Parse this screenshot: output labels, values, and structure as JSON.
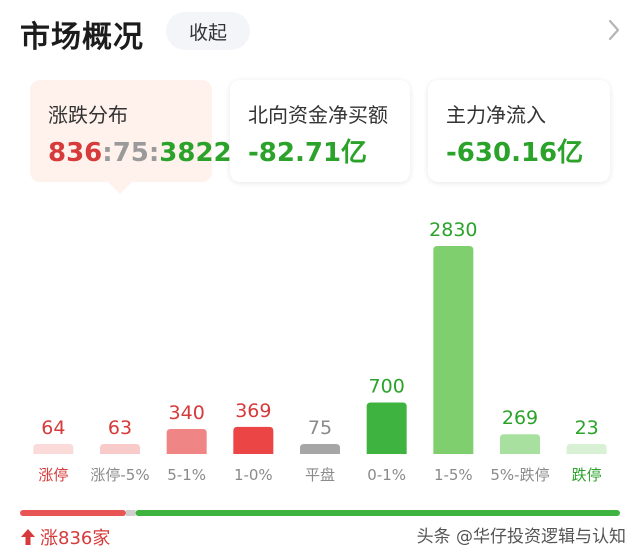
{
  "header": {
    "title": "市场概况",
    "collapse_label": "收起"
  },
  "cards": {
    "breadth": {
      "label": "涨跌分布",
      "up": "836",
      "flat": "75",
      "down": "3822"
    },
    "northbound": {
      "label": "北向资金净买额",
      "value": "-82.71亿"
    },
    "mainflow": {
      "label": "主力净流入",
      "value": "-630.16亿"
    }
  },
  "chart_data": {
    "type": "bar",
    "categories": [
      "涨停",
      "涨停-5%",
      "5-1%",
      "1-0%",
      "平盘",
      "0-1%",
      "1-5%",
      "5%-跌停",
      "跌停"
    ],
    "values": [
      64,
      63,
      340,
      369,
      75,
      700,
      2830,
      269,
      23
    ],
    "value_labels": [
      "64",
      "63",
      "340",
      "369",
      "75",
      "700",
      "2830",
      "269",
      "23"
    ],
    "colors": [
      "#fbdada",
      "#f8caca",
      "#f08585",
      "#ec4545",
      "#a6a6a6",
      "#3fb33f",
      "#7fcf6e",
      "#a8e0a0",
      "#d8f0d4"
    ],
    "label_colors": [
      "#d63a3a",
      "#d63a3a",
      "#d63a3a",
      "#d63a3a",
      "#8a8a8a",
      "#2ba32b",
      "#2ba32b",
      "#2ba32b",
      "#2ba32b"
    ],
    "category_colors": [
      "#d63a3a",
      "#8a8a8a",
      "#8a8a8a",
      "#8a8a8a",
      "#8a8a8a",
      "#8a8a8a",
      "#8a8a8a",
      "#8a8a8a",
      "#2ba32b"
    ],
    "ylim": [
      0,
      2830
    ],
    "grid": false,
    "title": "",
    "xlabel": "",
    "ylabel": ""
  },
  "ratio_bar": {
    "up": 836,
    "flat": 75,
    "down": 3822,
    "up_color": "#e85555",
    "flat_color": "#cfcfcf",
    "down_color": "#3fb33f"
  },
  "footer": {
    "up_text": "涨836家"
  },
  "watermark": "头条 @华仔投资逻辑与认知"
}
